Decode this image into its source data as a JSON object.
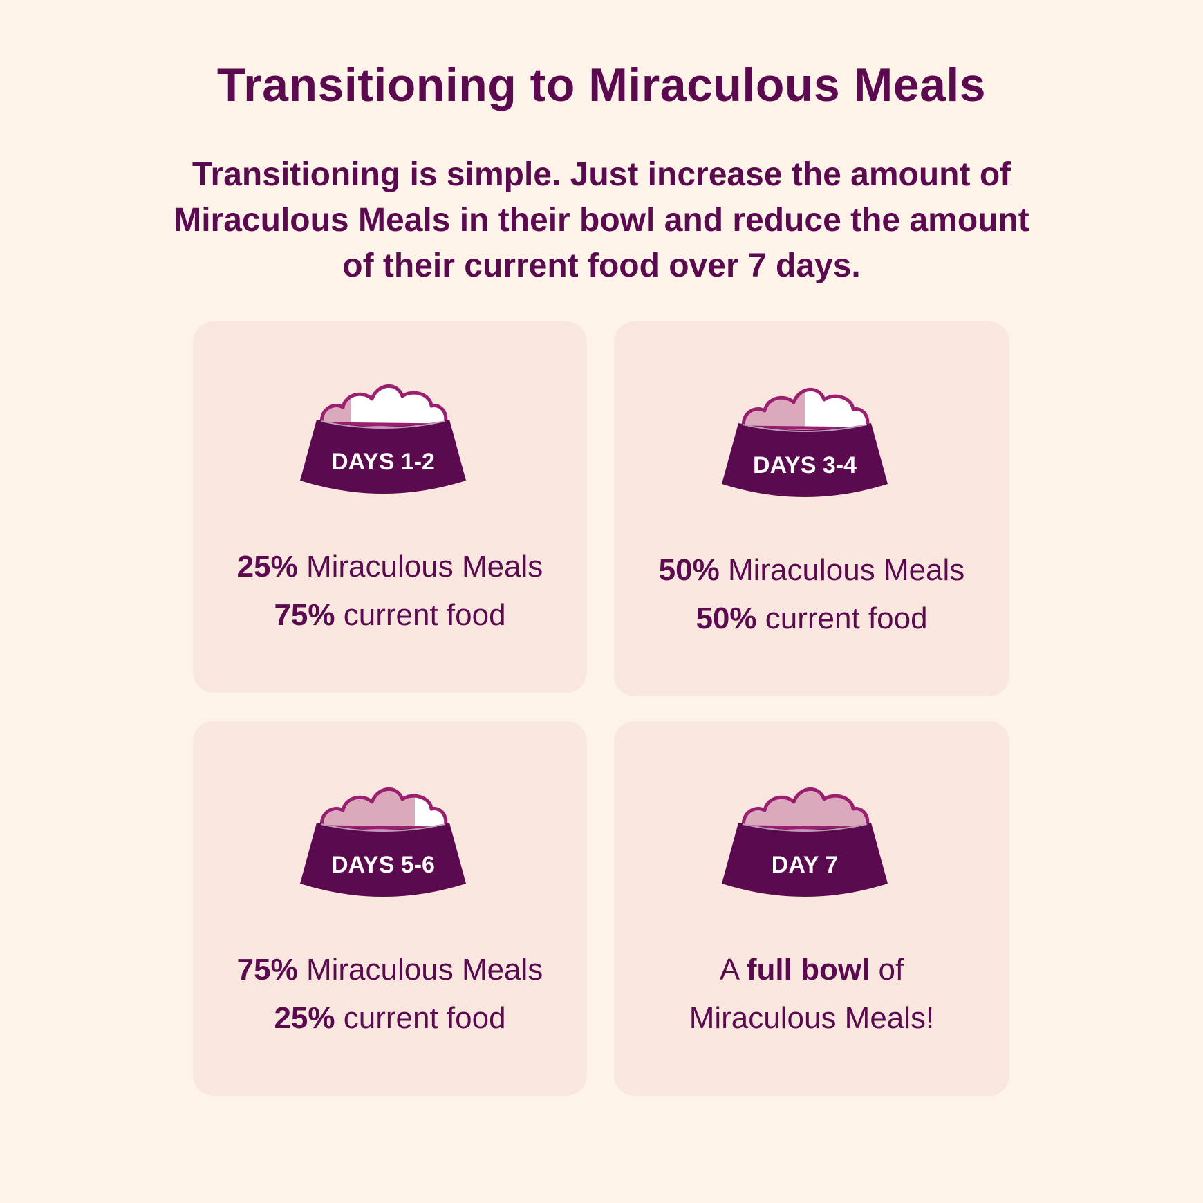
{
  "title": "Transitioning to Miraculous Meals",
  "subtitle": "Transitioning is simple. Just increase the amount of Miraculous Meals in their bowl and reduce the amount of their current food over 7 days.",
  "colors": {
    "background": "#fdf3e8",
    "card": "#f9e7df",
    "primary": "#5c0a4f",
    "new_food": "#dba9bb",
    "current_food": "#ffffff",
    "outline": "#9b1f70"
  },
  "stages": [
    {
      "label": "DAYS 1-2",
      "new_fraction": 0.25,
      "line1_pct": "25%",
      "line1_text": " Miraculous Meals",
      "line2_pct": "75%",
      "line2_text": " current food"
    },
    {
      "label": "DAYS 3-4",
      "new_fraction": 0.5,
      "line1_pct": "50%",
      "line1_text": " Miraculous Meals",
      "line2_pct": "50%",
      "line2_text": " current food"
    },
    {
      "label": "DAYS 5-6",
      "new_fraction": 0.75,
      "line1_pct": "75%",
      "line1_text": " Miraculous Meals",
      "line2_pct": "25%",
      "line2_text": " current food"
    },
    {
      "label": "DAY 7",
      "new_fraction": 1.0,
      "line1_pre": "A ",
      "line1_bold": "full bowl",
      "line1_post": " of",
      "line2_text": "Miraculous Meals!"
    }
  ]
}
